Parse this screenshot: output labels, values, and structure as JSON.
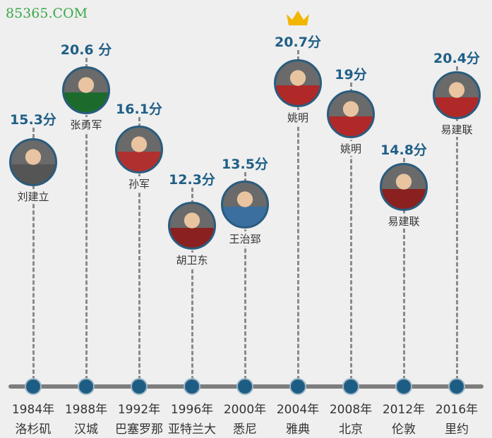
{
  "chart_data": {
    "type": "timeline",
    "unit": "分",
    "categories": [
      "1984年",
      "1988年",
      "1992年",
      "1996年",
      "2000年",
      "2004年",
      "2008年",
      "2012年",
      "2016年"
    ],
    "cities": [
      "洛杉矶",
      "汉城",
      "巴塞罗那",
      "亚特兰大",
      "悉尼",
      "雅典",
      "北京",
      "伦敦",
      "里约"
    ],
    "players": [
      "刘建立",
      "张勇军",
      "孙军",
      "胡卫东",
      "王治郅",
      "姚明",
      "姚明",
      "易建联",
      "易建联"
    ],
    "values": [
      15.3,
      20.6,
      16.1,
      12.3,
      13.5,
      20.7,
      19,
      14.8,
      20.4
    ],
    "value_labels": [
      "15.3分",
      "20.6 分",
      "16.1分",
      "12.3分",
      "13.5分",
      "20.7分",
      "19分",
      "14.8分",
      "20.4分"
    ],
    "highlight_index": 5,
    "highlight_icon": "crown-icon"
  },
  "colors": {
    "accent": "#1f5f86",
    "axis": "#7d7d7d",
    "crown": "#f2b600",
    "jersey_red": "#c8262b"
  },
  "watermark": "85365.COM"
}
